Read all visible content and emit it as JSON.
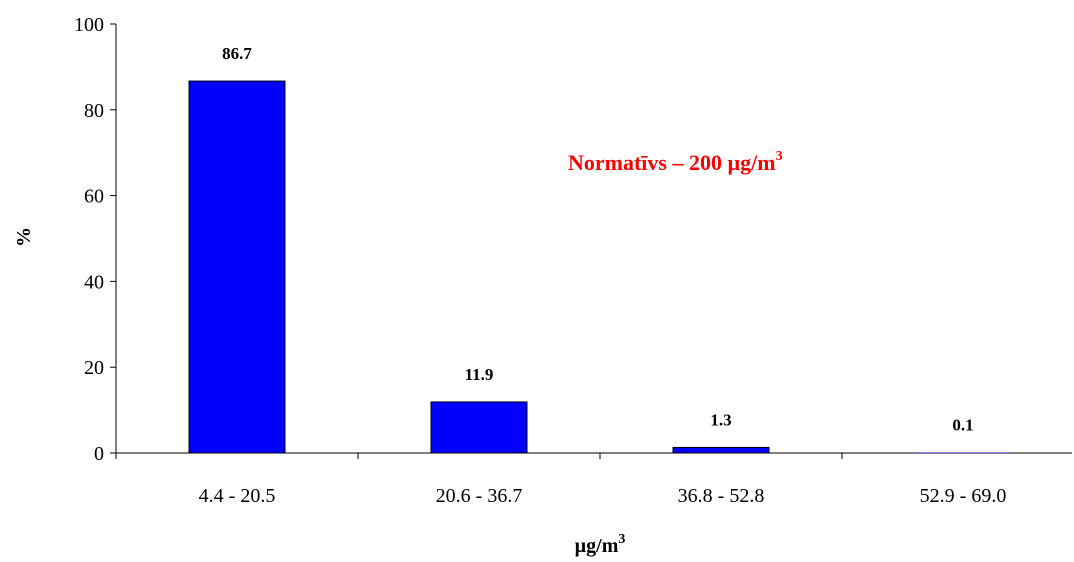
{
  "chart_data": {
    "type": "bar",
    "categories": [
      "4.4 - 20.5",
      "20.6 - 36.7",
      "36.8 - 52.8",
      "52.9 - 69.0"
    ],
    "values": [
      86.7,
      11.9,
      1.3,
      0.1
    ],
    "data_labels": [
      "86.7",
      "11.9",
      "1.3",
      "0.1"
    ],
    "ylim": [
      0,
      100
    ],
    "yticks": [
      "0",
      "20",
      "40",
      "60",
      "80",
      "100"
    ],
    "ylabel": "%",
    "xlabel": {
      "base": "µg/m",
      "sup": "3"
    },
    "annotation": {
      "base": "Normatīvs – 200 µg/m",
      "sup": "3"
    },
    "grid": false,
    "legend": "none"
  },
  "colors": {
    "bar_fill": "#0000ff",
    "bar_stroke": "#000000",
    "annotation": "#ff0000",
    "axis": "#000000"
  }
}
